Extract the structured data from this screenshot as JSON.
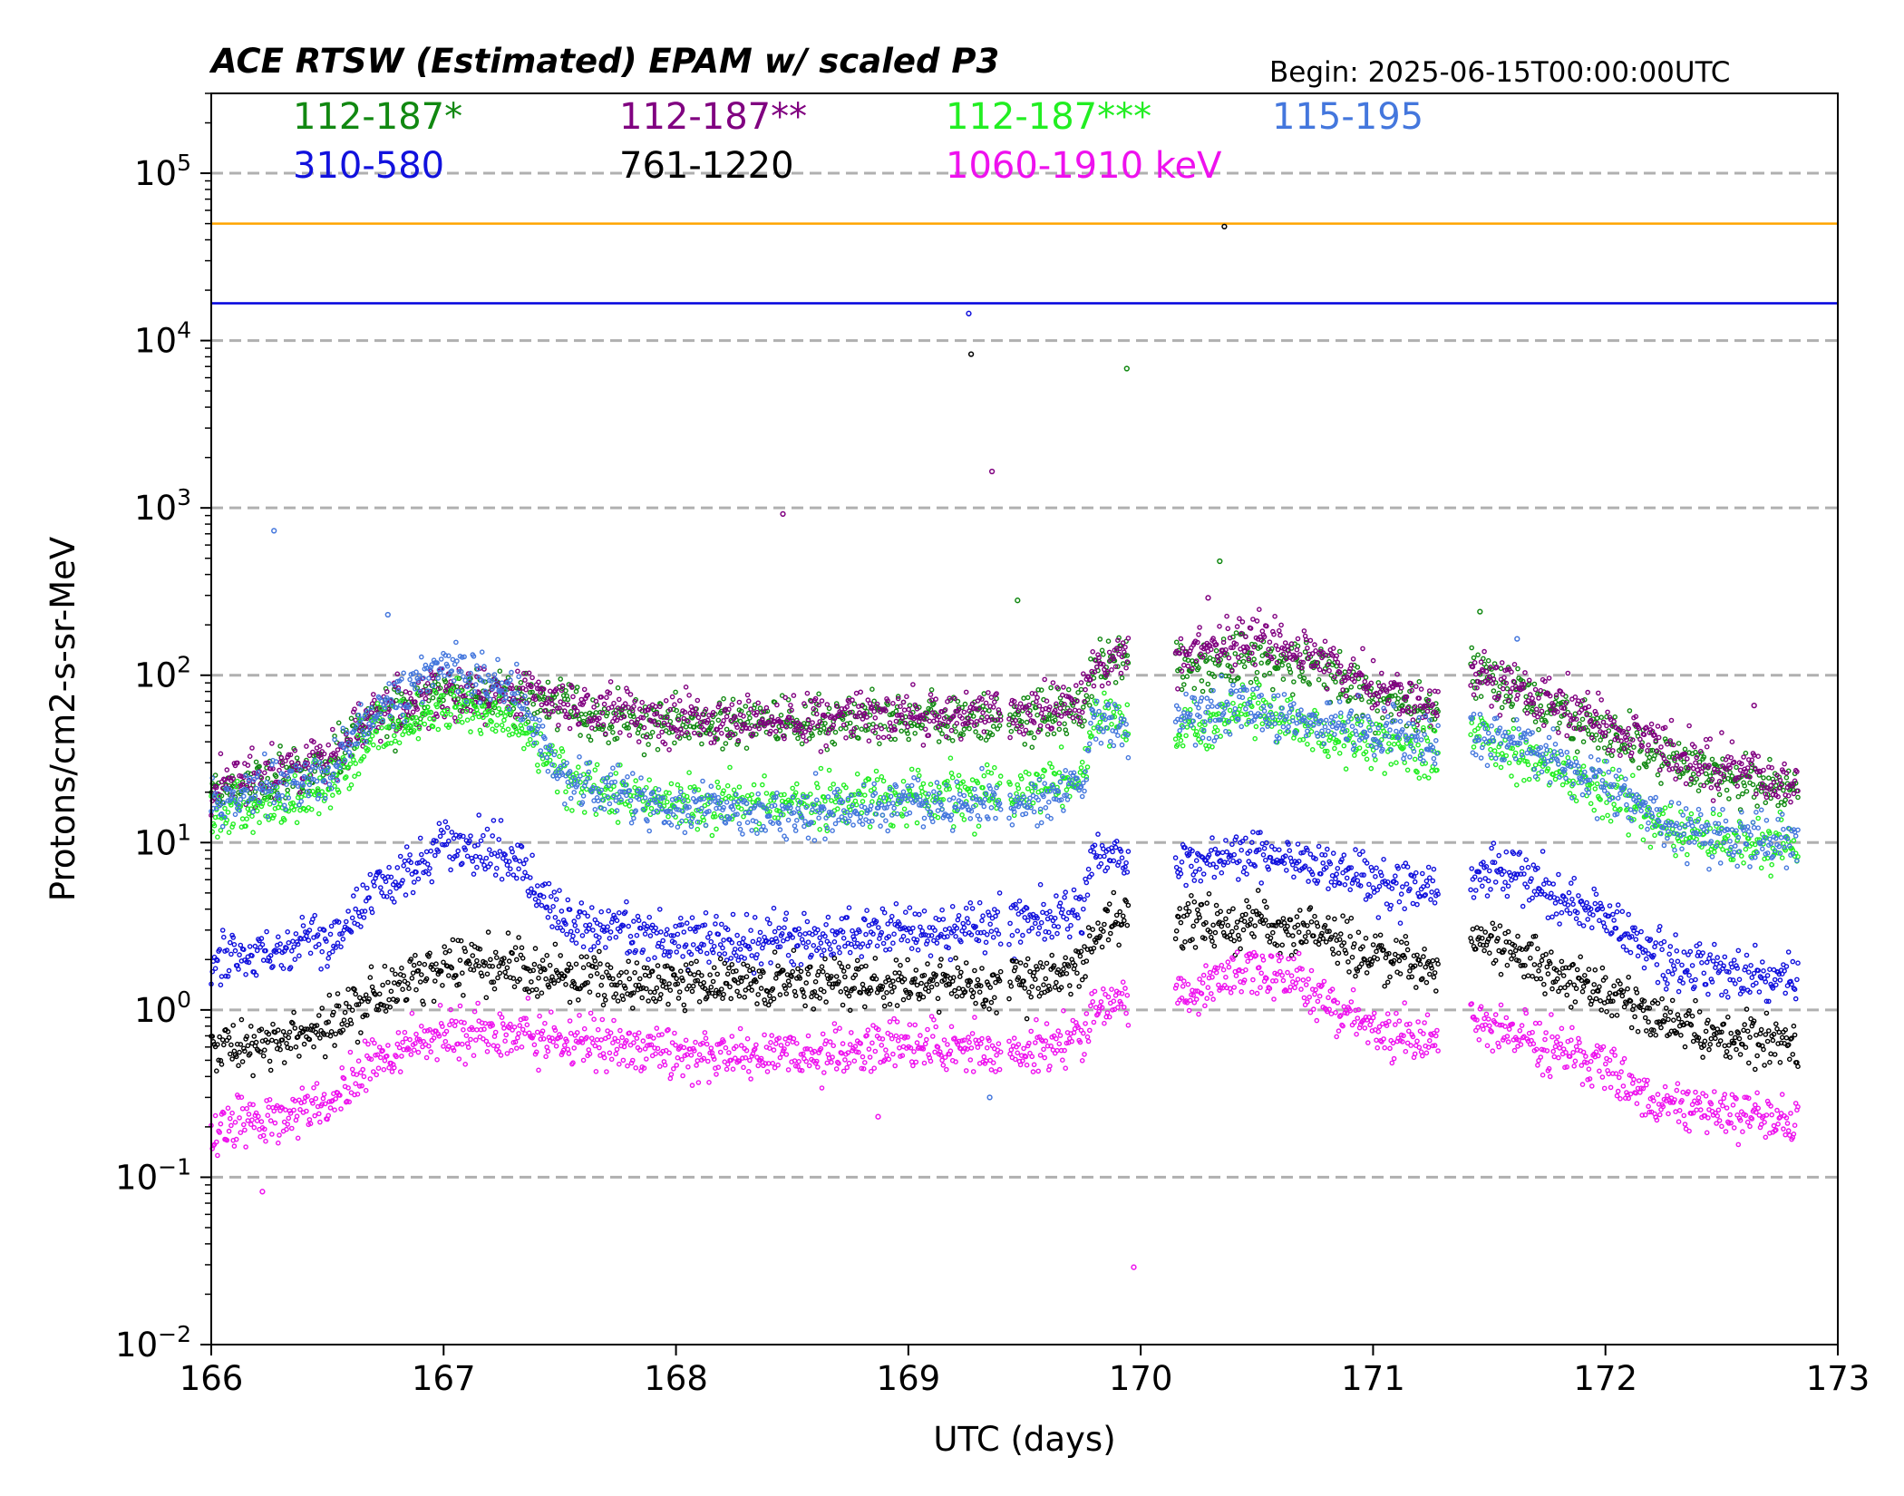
{
  "chart_data": {
    "type": "scatter",
    "title": "ACE RTSW (Estimated) EPAM w/ scaled P3",
    "begin_label": "Begin: 2025-06-15T00:00:00UTC",
    "xlabel": "UTC (days)",
    "ylabel": "Protons/cm2-s-sr-MeV",
    "xlim": [
      166,
      173
    ],
    "ylim": [
      0.01,
      300000
    ],
    "yscale": "log",
    "x_ticks": [
      "166",
      "167",
      "168",
      "169",
      "170",
      "171",
      "172",
      "173"
    ],
    "y_ticks": [
      {
        "base": "10",
        "exp": "−2",
        "value": 0.01
      },
      {
        "base": "10",
        "exp": "−1",
        "value": 0.1
      },
      {
        "base": "10",
        "exp": "0",
        "value": 1
      },
      {
        "base": "10",
        "exp": "1",
        "value": 10
      },
      {
        "base": "10",
        "exp": "2",
        "value": 100
      },
      {
        "base": "10",
        "exp": "3",
        "value": 1000
      },
      {
        "base": "10",
        "exp": "4",
        "value": 10000
      },
      {
        "base": "10",
        "exp": "5",
        "value": 100000
      }
    ],
    "grid": "horizontal dashed at decades",
    "legend_placement": "top-inside",
    "threshold_lines": [
      {
        "value": 50000,
        "color": "#ffa500"
      },
      {
        "value": 16700,
        "color": "#0000dd"
      }
    ],
    "series": [
      {
        "name": "112-187*",
        "color": "#118811",
        "profile": [
          [
            166.0,
            20
          ],
          [
            166.3,
            25
          ],
          [
            166.5,
            28
          ],
          [
            166.7,
            55
          ],
          [
            167.0,
            75
          ],
          [
            167.3,
            75
          ],
          [
            167.6,
            60
          ],
          [
            168.0,
            50
          ],
          [
            168.5,
            52
          ],
          [
            169.0,
            55
          ],
          [
            169.5,
            55
          ],
          [
            169.75,
            65
          ],
          [
            169.8,
            110
          ],
          [
            169.95,
            130
          ]
        ],
        "profile2": [
          [
            170.15,
            110
          ],
          [
            170.5,
            130
          ],
          [
            170.8,
            100
          ],
          [
            171.0,
            75
          ],
          [
            171.28,
            60
          ]
        ],
        "profile3": [
          [
            171.42,
            110
          ],
          [
            171.6,
            80
          ],
          [
            172.0,
            45
          ],
          [
            172.4,
            28
          ],
          [
            172.83,
            20
          ]
        ]
      },
      {
        "name": "112-187**",
        "color": "#800080",
        "profile": [
          [
            166.0,
            22
          ],
          [
            166.3,
            28
          ],
          [
            166.5,
            30
          ],
          [
            166.7,
            58
          ],
          [
            167.0,
            78
          ],
          [
            167.3,
            80
          ],
          [
            167.6,
            65
          ],
          [
            168.0,
            55
          ],
          [
            168.5,
            55
          ],
          [
            169.0,
            58
          ],
          [
            169.5,
            60
          ],
          [
            169.75,
            70
          ],
          [
            169.8,
            115
          ],
          [
            169.95,
            135
          ]
        ],
        "profile2": [
          [
            170.15,
            130
          ],
          [
            170.5,
            175
          ],
          [
            170.8,
            120
          ],
          [
            171.0,
            85
          ],
          [
            171.28,
            65
          ]
        ],
        "profile3": [
          [
            171.42,
            100
          ],
          [
            171.6,
            85
          ],
          [
            172.0,
            50
          ],
          [
            172.4,
            30
          ],
          [
            172.83,
            22
          ]
        ]
      },
      {
        "name": "112-187***",
        "color": "#22ee22",
        "profile": [
          [
            166.0,
            14
          ],
          [
            166.3,
            17
          ],
          [
            166.5,
            20
          ],
          [
            166.7,
            45
          ],
          [
            167.0,
            65
          ],
          [
            167.3,
            55
          ],
          [
            167.5,
            25
          ],
          [
            168.0,
            17
          ],
          [
            168.5,
            17
          ],
          [
            169.0,
            19
          ],
          [
            169.5,
            20
          ],
          [
            169.75,
            25
          ],
          [
            169.8,
            60
          ],
          [
            169.95,
            50
          ]
        ],
        "profile2": [
          [
            170.15,
            45
          ],
          [
            170.5,
            62
          ],
          [
            170.8,
            45
          ],
          [
            171.0,
            40
          ],
          [
            171.28,
            35
          ]
        ],
        "profile3": [
          [
            171.42,
            45
          ],
          [
            171.6,
            35
          ],
          [
            172.0,
            20
          ],
          [
            172.3,
            12
          ],
          [
            172.83,
            9
          ]
        ]
      },
      {
        "name": "115-195",
        "color": "#4477dd",
        "profile": [
          [
            166.0,
            18
          ],
          [
            166.3,
            22
          ],
          [
            166.5,
            25
          ],
          [
            166.7,
            60
          ],
          [
            167.0,
            110
          ],
          [
            167.3,
            80
          ],
          [
            167.5,
            25
          ],
          [
            168.0,
            16
          ],
          [
            168.5,
            15
          ],
          [
            169.0,
            17
          ],
          [
            169.5,
            17
          ],
          [
            169.75,
            22
          ],
          [
            169.8,
            55
          ],
          [
            169.95,
            48
          ]
        ],
        "profile2": [
          [
            170.15,
            55
          ],
          [
            170.4,
            65
          ],
          [
            170.8,
            48
          ],
          [
            171.0,
            45
          ],
          [
            171.28,
            40
          ]
        ],
        "profile3": [
          [
            171.42,
            40
          ],
          [
            171.6,
            40
          ],
          [
            172.0,
            22
          ],
          [
            172.3,
            12
          ],
          [
            172.83,
            10
          ]
        ]
      },
      {
        "name": "310-580",
        "color": "#1111dd",
        "profile": [
          [
            166.0,
            2
          ],
          [
            166.3,
            2.4
          ],
          [
            166.5,
            2.6
          ],
          [
            166.7,
            5
          ],
          [
            167.0,
            10
          ],
          [
            167.3,
            8
          ],
          [
            167.5,
            3.5
          ],
          [
            168.0,
            2.6
          ],
          [
            168.5,
            2.6
          ],
          [
            169.0,
            3
          ],
          [
            169.5,
            3.3
          ],
          [
            169.75,
            4
          ],
          [
            169.8,
            9
          ],
          [
            169.95,
            8
          ]
        ],
        "profile2": [
          [
            170.15,
            7.5
          ],
          [
            170.5,
            9
          ],
          [
            170.8,
            7
          ],
          [
            171.0,
            5.8
          ],
          [
            171.28,
            5
          ]
        ],
        "profile3": [
          [
            171.42,
            6
          ],
          [
            171.6,
            7
          ],
          [
            172.0,
            3.5
          ],
          [
            172.3,
            1.8
          ],
          [
            172.83,
            1.5
          ]
        ]
      },
      {
        "name": "761-1220",
        "color": "#000000",
        "profile": [
          [
            166.0,
            0.6
          ],
          [
            166.3,
            0.65
          ],
          [
            166.5,
            0.8
          ],
          [
            166.7,
            1.2
          ],
          [
            167.0,
            1.9
          ],
          [
            167.3,
            1.8
          ],
          [
            167.5,
            1.6
          ],
          [
            168.0,
            1.4
          ],
          [
            168.5,
            1.4
          ],
          [
            169.0,
            1.4
          ],
          [
            169.5,
            1.5
          ],
          [
            169.75,
            1.7
          ],
          [
            169.8,
            3
          ],
          [
            169.95,
            3.6
          ]
        ],
        "profile2": [
          [
            170.15,
            3.3
          ],
          [
            170.5,
            3.3
          ],
          [
            170.8,
            2.8
          ],
          [
            171.0,
            2.2
          ],
          [
            171.28,
            1.8
          ]
        ],
        "profile3": [
          [
            171.42,
            3
          ],
          [
            171.6,
            2.2
          ],
          [
            172.0,
            1.3
          ],
          [
            172.3,
            0.8
          ],
          [
            172.83,
            0.6
          ]
        ]
      },
      {
        "name": "1060-1910 keV",
        "color": "#ee11ee",
        "profile": [
          [
            166.0,
            0.2
          ],
          [
            166.3,
            0.22
          ],
          [
            166.5,
            0.26
          ],
          [
            166.7,
            0.5
          ],
          [
            167.0,
            0.75
          ],
          [
            167.3,
            0.72
          ],
          [
            167.5,
            0.65
          ],
          [
            168.0,
            0.55
          ],
          [
            168.5,
            0.55
          ],
          [
            169.0,
            0.6
          ],
          [
            169.5,
            0.55
          ],
          [
            169.75,
            0.7
          ],
          [
            169.8,
            1.0
          ],
          [
            169.95,
            1.2
          ]
        ],
        "profile2": [
          [
            170.15,
            1.2
          ],
          [
            170.5,
            1.8
          ],
          [
            170.8,
            1.1
          ],
          [
            171.0,
            0.75
          ],
          [
            171.28,
            0.6
          ]
        ],
        "profile3": [
          [
            171.42,
            0.9
          ],
          [
            171.6,
            0.7
          ],
          [
            172.0,
            0.45
          ],
          [
            172.2,
            0.28
          ],
          [
            172.83,
            0.2
          ]
        ]
      }
    ],
    "outliers": [
      {
        "series": 4,
        "x": 169.26,
        "y": 14500
      },
      {
        "series": 5,
        "x": 169.27,
        "y": 8300
      },
      {
        "series": 1,
        "x": 169.36,
        "y": 1650
      },
      {
        "series": 3,
        "x": 166.27,
        "y": 730
      },
      {
        "series": 1,
        "x": 168.46,
        "y": 920
      },
      {
        "series": 0,
        "x": 169.94,
        "y": 6800
      },
      {
        "series": 0,
        "x": 170.34,
        "y": 480
      },
      {
        "series": 1,
        "x": 170.29,
        "y": 290
      },
      {
        "series": 6,
        "x": 169.97,
        "y": 0.029
      },
      {
        "series": 6,
        "x": 166.22,
        "y": 0.082
      },
      {
        "series": 6,
        "x": 168.87,
        "y": 0.23
      },
      {
        "series": 0,
        "x": 169.47,
        "y": 280
      },
      {
        "series": 3,
        "x": 166.76,
        "y": 230
      },
      {
        "series": 0,
        "x": 171.46,
        "y": 240
      },
      {
        "series": 3,
        "x": 171.62,
        "y": 165
      },
      {
        "series": 5,
        "x": 170.36,
        "y": 48000
      },
      {
        "series": 3,
        "x": 169.35,
        "y": 0.3
      },
      {
        "series": 1,
        "x": 172.64,
        "y": 66
      }
    ]
  }
}
